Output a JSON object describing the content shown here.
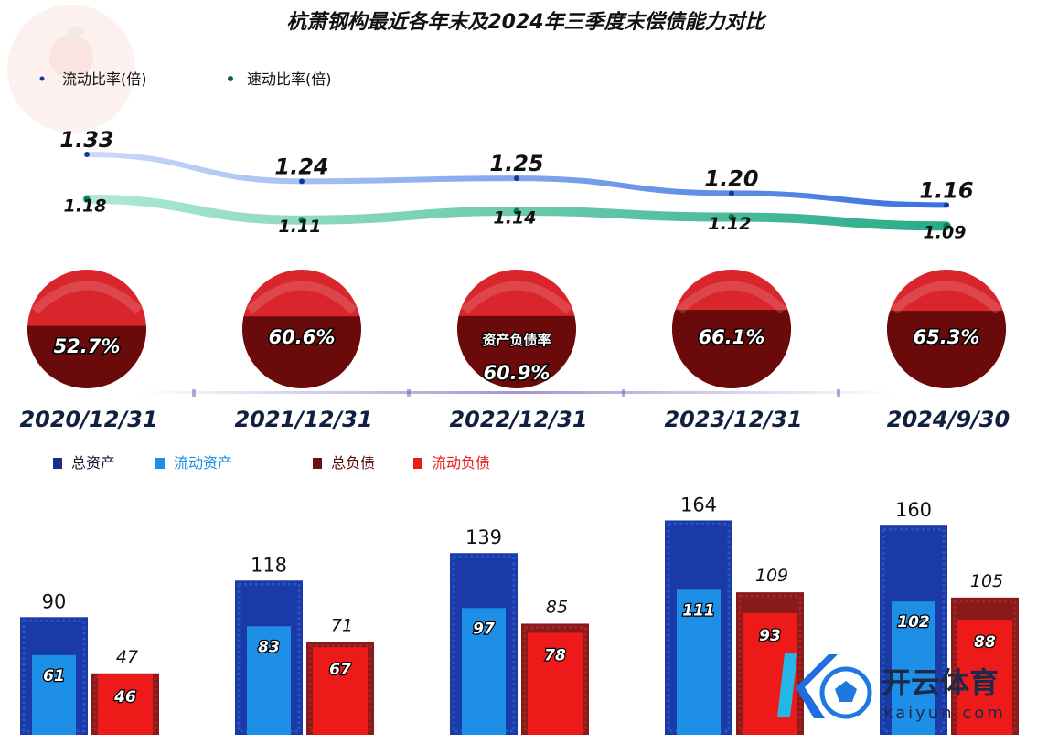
{
  "title": "杭萧钢构最近各年末及2024年三季度末偿债能力对比",
  "colors": {
    "current_ratio": "#2f6fe0",
    "quick_ratio": "#20b08a",
    "pie_light": "#d8262c",
    "pie_dark": "#6b0a0a",
    "total_assets": "#1a3aa8",
    "current_assets": "#1e8fe6",
    "total_liabilities": "#8a1a1a",
    "current_liabilities": "#e81e1e"
  },
  "line_legend": [
    {
      "label": "流动比率(倍)",
      "color": "#2f6fe0"
    },
    {
      "label": "速动比率(倍)",
      "color": "#20b08a"
    }
  ],
  "bar_legend": [
    {
      "label": "总资产",
      "color": "#1a2f8f"
    },
    {
      "label": "流动资产",
      "color": "#1e8fe6"
    },
    {
      "label": "总负债",
      "color": "#6b0f0f"
    },
    {
      "label": "流动负债",
      "color": "#e81e1e"
    }
  ],
  "pie_caption": "资产负债率",
  "chart_data": [
    {
      "type": "line",
      "categories": [
        "2020/12/31",
        "2021/12/31",
        "2022/12/31",
        "2023/12/31",
        "2024/9/30"
      ],
      "series": [
        {
          "name": "流动比率(倍)",
          "values": [
            1.33,
            1.24,
            1.25,
            1.2,
            1.16
          ],
          "labels": [
            "1.33",
            "1.24",
            "1.25",
            "1.20",
            "1.16"
          ]
        },
        {
          "name": "速动比率(倍)",
          "values": [
            1.18,
            1.11,
            1.14,
            1.12,
            1.09
          ],
          "labels": [
            "1.18",
            "1.11",
            "1.14",
            "1.12",
            "1.09"
          ]
        }
      ]
    },
    {
      "type": "pie",
      "categories": [
        "2020/12/31",
        "2021/12/31",
        "2022/12/31",
        "2023/12/31",
        "2024/9/30"
      ],
      "values": [
        52.7,
        60.6,
        60.9,
        66.1,
        65.3
      ],
      "labels": [
        "52.7%",
        "60.6%",
        "60.9%",
        "66.1%",
        "65.3%"
      ]
    },
    {
      "type": "bar",
      "categories": [
        "2020/12/31",
        "2021/12/31",
        "2022/12/31",
        "2023/12/31",
        "2024/9/30"
      ],
      "series": [
        {
          "name": "总资产",
          "values": [
            90,
            118,
            139,
            164,
            160
          ]
        },
        {
          "name": "流动资产",
          "values": [
            61,
            83,
            97,
            111,
            102
          ]
        },
        {
          "name": "总负债",
          "values": [
            47,
            71,
            85,
            109,
            105
          ]
        },
        {
          "name": "流动负债",
          "values": [
            46,
            67,
            78,
            93,
            88
          ]
        }
      ]
    }
  ],
  "watermark": {
    "brand": "开云体育",
    "domain": "kaiyun.com"
  }
}
